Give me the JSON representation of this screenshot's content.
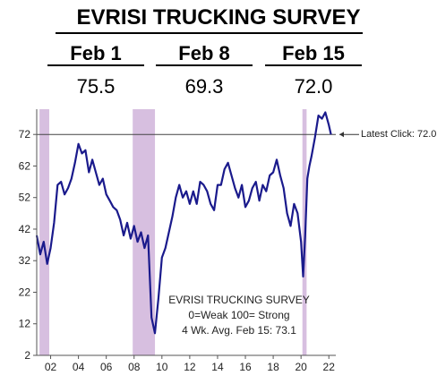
{
  "header": {
    "title": "EVRISI TRUCKING SURVEY",
    "columns": [
      {
        "label": "Feb 1",
        "value": "75.5"
      },
      {
        "label": "Feb 8",
        "value": "69.3"
      },
      {
        "label": "Feb 15",
        "value": "72.0"
      }
    ]
  },
  "chart_data": {
    "type": "line",
    "title": "",
    "xlabel": "",
    "ylabel": "",
    "xlim": [
      2001,
      2022.5
    ],
    "ylim": [
      2,
      80
    ],
    "grid": false,
    "y_ticks": [
      2,
      12,
      22,
      32,
      42,
      52,
      62,
      72
    ],
    "x_ticks": [
      {
        "value": 2002,
        "label": "02"
      },
      {
        "value": 2004,
        "label": "04"
      },
      {
        "value": 2006,
        "label": "06"
      },
      {
        "value": 2008,
        "label": "08"
      },
      {
        "value": 2010,
        "label": "10"
      },
      {
        "value": 2012,
        "label": "12"
      },
      {
        "value": 2014,
        "label": "14"
      },
      {
        "value": 2016,
        "label": "16"
      },
      {
        "value": 2018,
        "label": "18"
      },
      {
        "value": 2020,
        "label": "20"
      },
      {
        "value": 2022,
        "label": "22"
      }
    ],
    "recessions": [
      [
        2001.2,
        2001.9
      ],
      [
        2007.9,
        2009.5
      ],
      [
        2020.1,
        2020.4
      ]
    ],
    "reference_line": {
      "y": 72,
      "label": "Latest Click: 72.0",
      "mark": "✓"
    },
    "legend_box": {
      "lines": [
        "EVRISI TRUCKING SURVEY",
        "0=Weak    100= Strong",
        "4 Wk. Avg.    Feb 15: 73.1"
      ]
    },
    "colors": {
      "line": "#1a1a8c",
      "recession": "#d7bfe0",
      "reference": "#444444"
    },
    "series": [
      {
        "x": [
          2001.0,
          2001.25,
          2001.5,
          2001.75,
          2002.0,
          2002.25,
          2002.5,
          2002.75,
          2003.0,
          2003.25,
          2003.5,
          2003.75,
          2004.0,
          2004.25,
          2004.5,
          2004.75,
          2005.0,
          2005.25,
          2005.5,
          2005.75,
          2006.0,
          2006.25,
          2006.5,
          2006.75,
          2007.0,
          2007.25,
          2007.5,
          2007.75,
          2008.0,
          2008.25,
          2008.5,
          2008.75,
          2009.0,
          2009.25,
          2009.5,
          2009.75,
          2010.0,
          2010.25,
          2010.5,
          2010.75,
          2011.0,
          2011.25,
          2011.5,
          2011.75,
          2012.0,
          2012.25,
          2012.5,
          2012.75,
          2013.0,
          2013.25,
          2013.5,
          2013.75,
          2014.0,
          2014.25,
          2014.5,
          2014.75,
          2015.0,
          2015.25,
          2015.5,
          2015.75,
          2016.0,
          2016.25,
          2016.5,
          2016.75,
          2017.0,
          2017.25,
          2017.5,
          2017.75,
          2018.0,
          2018.25,
          2018.5,
          2018.75,
          2019.0,
          2019.25,
          2019.5,
          2019.75,
          2020.0,
          2020.15,
          2020.3,
          2020.45,
          2020.6,
          2020.75,
          2021.0,
          2021.25,
          2021.5,
          2021.75,
          2022.0,
          2022.15
        ],
        "values": [
          40,
          34,
          38,
          31,
          36,
          44,
          56,
          57,
          53,
          55,
          58,
          63,
          69,
          66,
          67,
          60,
          64,
          60,
          56,
          58,
          53,
          51,
          49,
          48,
          45,
          40,
          44,
          39,
          43,
          38,
          41,
          36,
          40,
          14,
          9,
          20,
          33,
          36,
          41,
          46,
          52,
          56,
          52,
          54,
          50,
          54,
          50,
          57,
          56,
          54,
          50,
          48,
          56,
          56,
          61,
          63,
          59,
          55,
          52,
          56,
          49,
          51,
          55,
          57,
          51,
          56,
          54,
          59,
          60,
          64,
          59,
          55,
          47,
          43,
          50,
          47,
          38,
          27,
          40,
          58,
          62,
          65,
          71,
          78,
          77,
          79,
          75,
          72
        ]
      }
    ]
  }
}
